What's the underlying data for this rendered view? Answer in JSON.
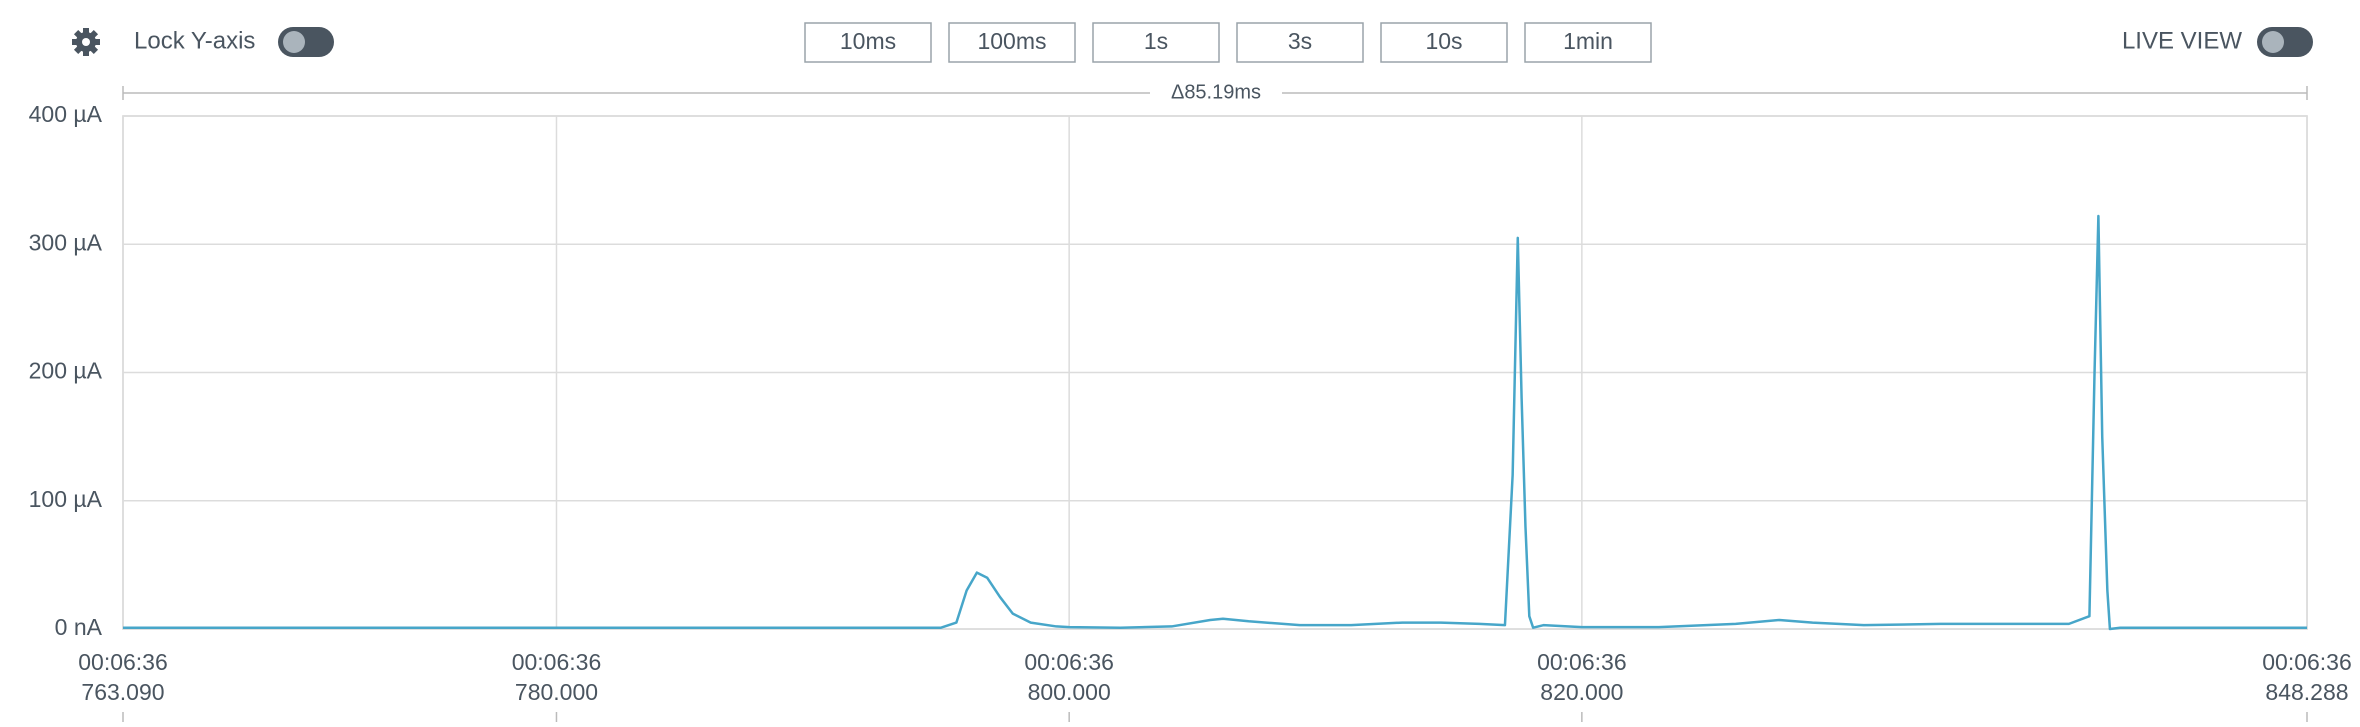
{
  "toolbar": {
    "lock_label": "Lock Y-axis",
    "buttons": [
      "10ms",
      "100ms",
      "1s",
      "3s",
      "10s",
      "1min"
    ],
    "live_label": "LIVE VIEW"
  },
  "chart_data": {
    "type": "line",
    "annotation": "Δ85.19ms",
    "color": "#47a6c9",
    "grid": true,
    "xlim": [
      763.09,
      848.288
    ],
    "ylim": [
      0,
      400
    ],
    "xticks": [
      {
        "value": 763.09,
        "label": [
          "00:06:36",
          "763.090"
        ]
      },
      {
        "value": 780,
        "label": [
          "00:06:36",
          "780.000"
        ]
      },
      {
        "value": 800,
        "label": [
          "00:06:36",
          "800.000"
        ]
      },
      {
        "value": 820,
        "label": [
          "00:06:36",
          "820.000"
        ]
      },
      {
        "value": 848.288,
        "label": [
          "00:06:36",
          "848.288"
        ]
      }
    ],
    "yticks": [
      {
        "value": 0,
        "label": "0 nA"
      },
      {
        "value": 100,
        "label": "100 µA"
      },
      {
        "value": 200,
        "label": "200 µA"
      },
      {
        "value": 300,
        "label": "300 µA"
      },
      {
        "value": 400,
        "label": "400 µA"
      }
    ],
    "x": [
      763.09,
      770,
      780,
      790,
      795,
      795.6,
      796.0,
      796.4,
      796.8,
      797.3,
      797.8,
      798.5,
      799.5,
      800,
      802,
      804,
      805.5,
      806,
      807,
      809,
      811,
      813,
      814.5,
      816,
      817.0,
      817.3,
      817.5,
      817.65,
      817.8,
      817.95,
      818.1,
      818.5,
      820,
      823,
      826,
      827.7,
      829,
      831,
      834,
      836.5,
      839,
      839.8,
      840.0,
      840.15,
      840.3,
      840.5,
      840.6,
      841,
      845,
      848.288
    ],
    "values": [
      1,
      1,
      1,
      1,
      1,
      5,
      30,
      44,
      40,
      25,
      12,
      5,
      2,
      1.5,
      1,
      2,
      7,
      8,
      6,
      3,
      3,
      5,
      5,
      4,
      3,
      120,
      305,
      180,
      80,
      10,
      1,
      3,
      1.5,
      1.5,
      4,
      7,
      5,
      3,
      4,
      4,
      4,
      10,
      200,
      322,
      150,
      30,
      0,
      1,
      1,
      1
    ]
  }
}
